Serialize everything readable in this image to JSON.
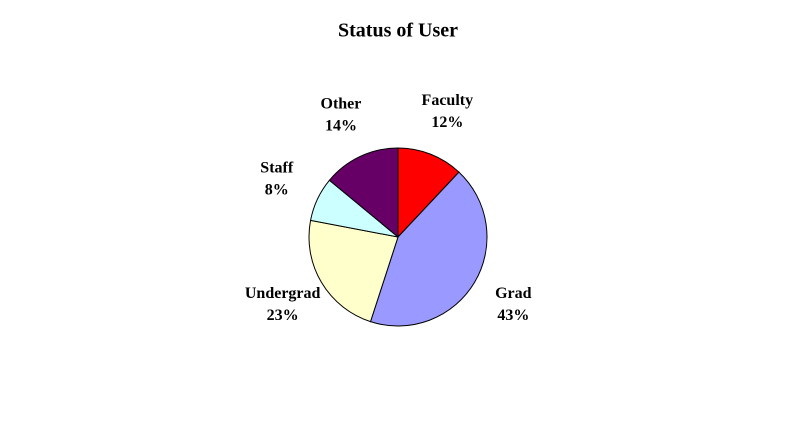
{
  "chart_data": {
    "type": "pie",
    "title": "Status of User",
    "categories": [
      "Faculty",
      "Grad",
      "Undergrad",
      "Staff",
      "Other"
    ],
    "values": [
      12,
      43,
      23,
      8,
      14
    ],
    "value_labels": [
      "12%",
      "43%",
      "23%",
      "8%",
      "14%"
    ],
    "colors": [
      "#ff0000",
      "#9999ff",
      "#ffffcc",
      "#ccffff",
      "#660066"
    ]
  }
}
